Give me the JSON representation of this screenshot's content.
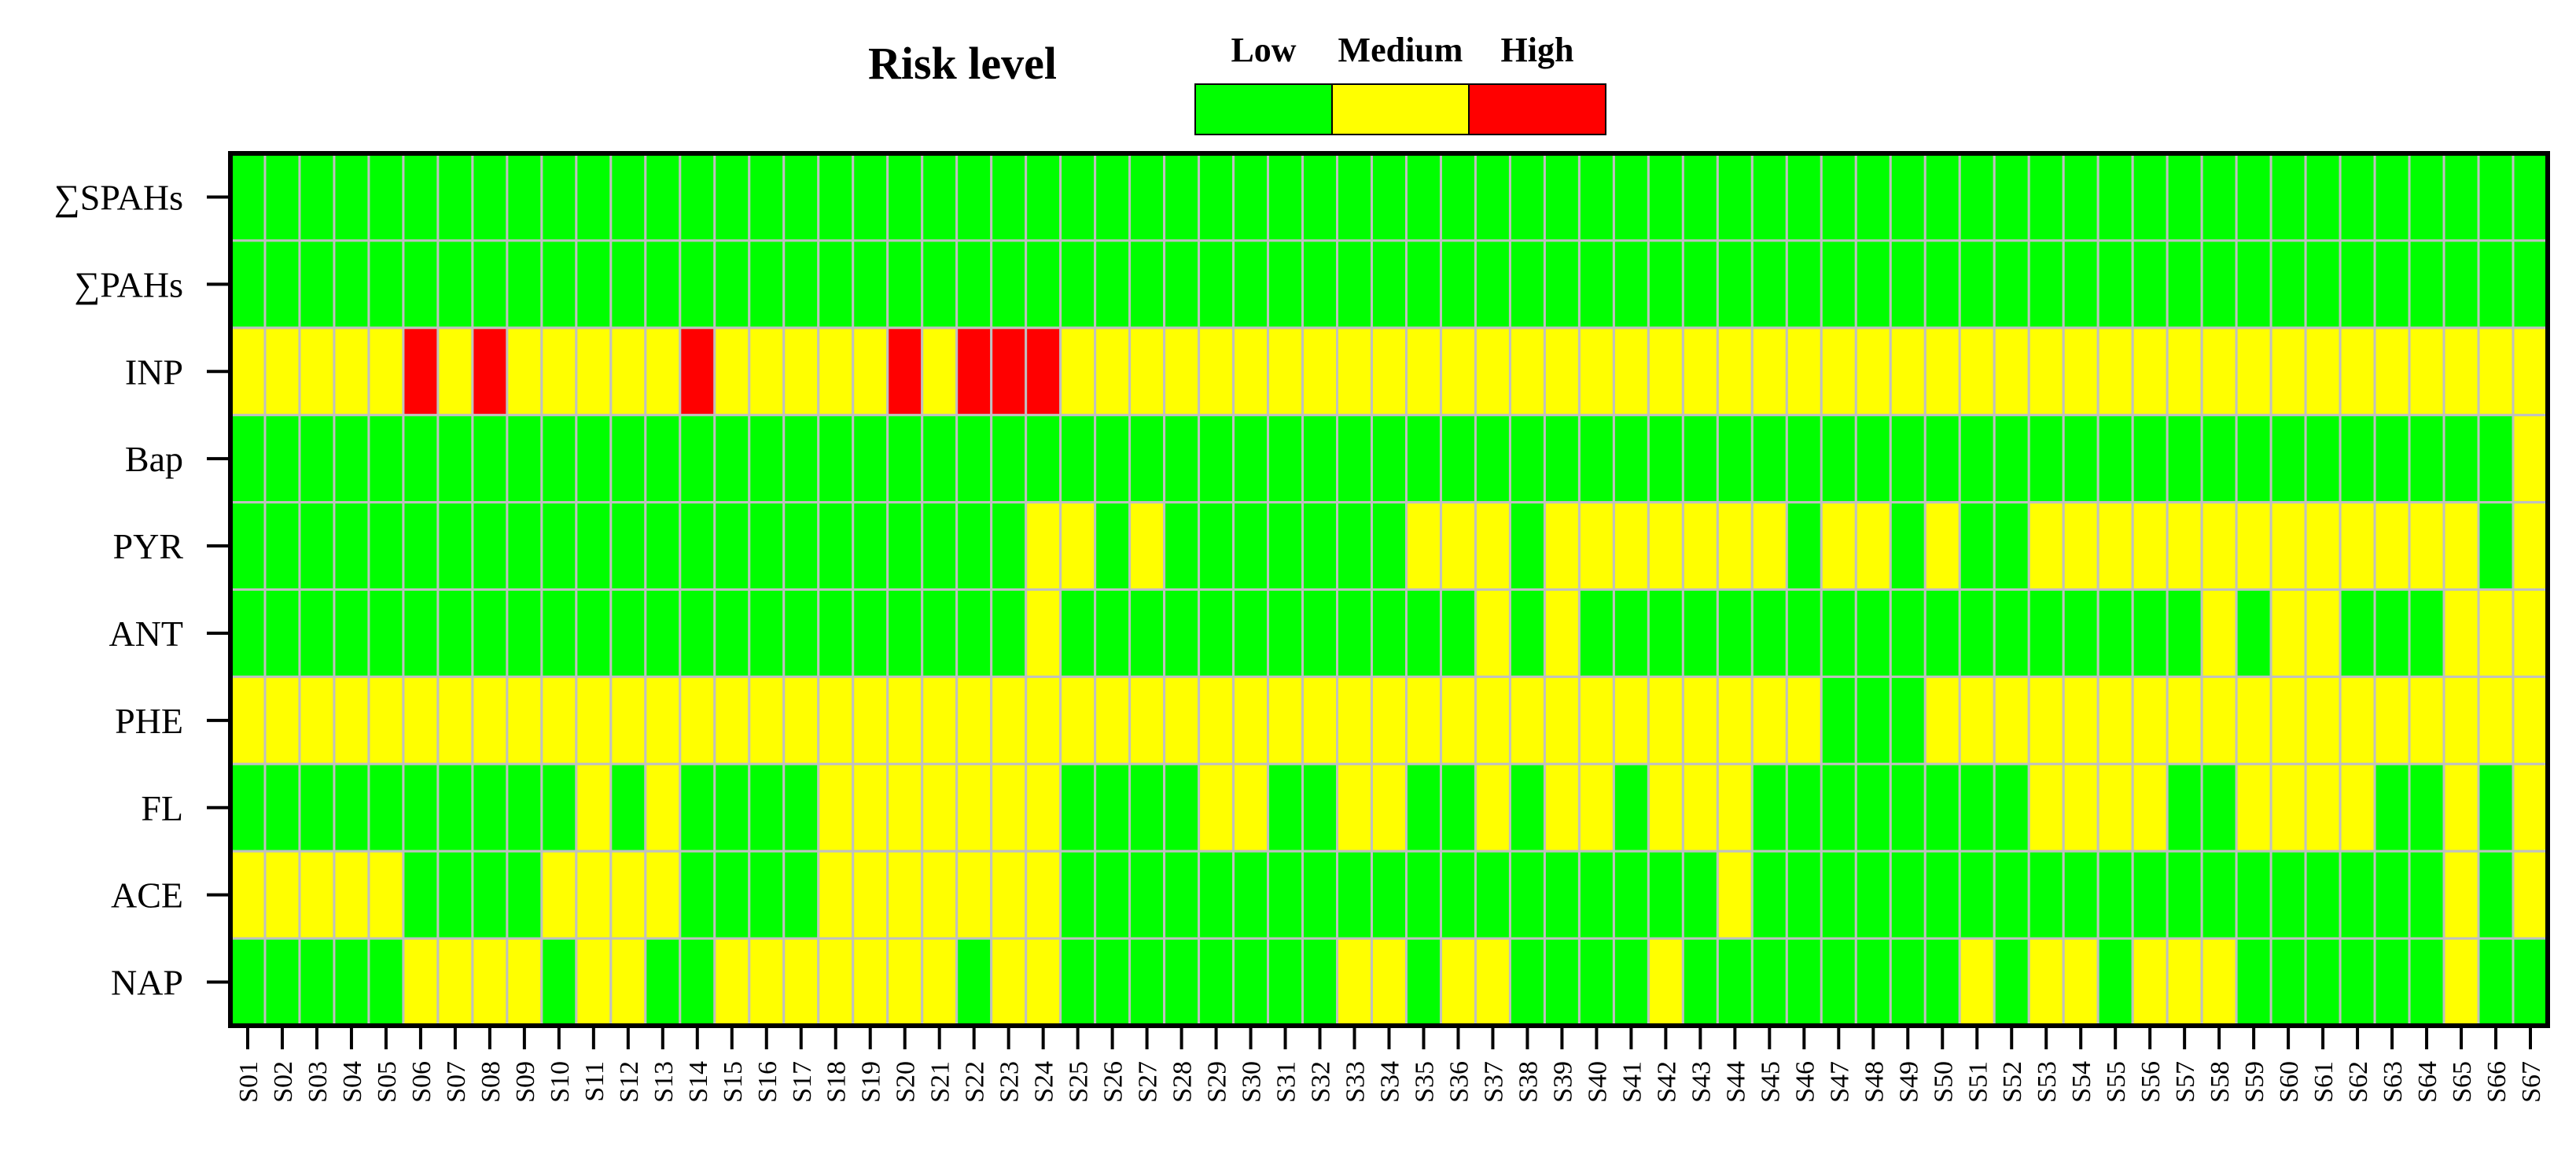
{
  "chart_data": {
    "type": "heatmap",
    "legend": {
      "title": "Risk level",
      "levels": [
        "Low",
        "Medium",
        "High"
      ],
      "colors": {
        "Low": "#00ff00",
        "Medium": "#ffff00",
        "High": "#ff0000"
      }
    },
    "grid_color": "#c0c0c0",
    "rows": [
      "∑SPAHs",
      "∑PAHs",
      "INP",
      "Bap",
      "PYR",
      "ANT",
      "PHE",
      "FL",
      "ACE",
      "NAP"
    ],
    "columns": [
      "S01",
      "S02",
      "S03",
      "S04",
      "S05",
      "S06",
      "S07",
      "S08",
      "S09",
      "S10",
      "S11",
      "S12",
      "S13",
      "S14",
      "S15",
      "S16",
      "S17",
      "S18",
      "S19",
      "S20",
      "S21",
      "S22",
      "S23",
      "S24",
      "S25",
      "S26",
      "S27",
      "S28",
      "S29",
      "S30",
      "S31",
      "S32",
      "S33",
      "S34",
      "S35",
      "S36",
      "S37",
      "S38",
      "S39",
      "S40",
      "S41",
      "S42",
      "S43",
      "S44",
      "S45",
      "S46",
      "S47",
      "S48",
      "S49",
      "S50",
      "S51",
      "S52",
      "S53",
      "S54",
      "S55",
      "S56",
      "S57",
      "S58",
      "S59",
      "S60",
      "S61",
      "S62",
      "S63",
      "S64",
      "S65",
      "S66",
      "S67"
    ],
    "level_codes": "L = Low, M = Medium, H = High",
    "values": [
      "LLLLLLLLLLLLLLLLLLLLLLLLLLLLLLLLLLLLLLLLLLLLLLLLLLLLLLLLLLLLLLLLLLL",
      "LLLLLLLLLLLLLLLLLLLLLLLLLLLLLLLLLLLLLLLLLLLLLLLLLLLLLLLLLLLLLLLLLLL",
      "MMMMMHMHMMMMMHMMMMMHMHHHMMMMMMMMMMMMMMMMMMMMMMMMMMMMMMMMMMMMMMMMMMM",
      "LLLLLLLLLLLLLLLLLLLLLLLLLLLLLLLLLLLLLLLLLLLLLLLLLLLLLLLLLLLLLLLLLLM",
      "LLLLLLLLLLLLLLLLLLLLLLLMMLMLLLLLLLMMMLMMMMMMMLMMLMLLMMMMMMMMMMMMMLML",
      "LLLLLLLLLLLLLLLLLLLLLLLMLLLLLLLLLLLLMLMLLLLLLLLLLLLLLLLLLMLMMLLLMMM",
      "MMMMMMMMMMMMMMMMMMMMMMMMMMMMMMMMMMMMMMMMMMMMMMLLLMMMMMMMMMMMMMMMMMM",
      "LLLLLLLLLLMLMLLLLMMMMMMMLLLLMMLLMMLLMLMMLMMMLLLLLLLLMMMMLLMMMMLLMLM",
      "MMMMMLLLLMMMMLLLLMMMMMMMLLLLLLLLLLLLLLLLLLLMLLLLLLLLLLLLLLLLLLLLMLM",
      "LLLLLMMMMLMMLLMMMMMMMLMMLLLLLLLLMMLMMLLLLMLLLLLLLLMLMMLMMMLLLLLLMLL"
    ]
  }
}
